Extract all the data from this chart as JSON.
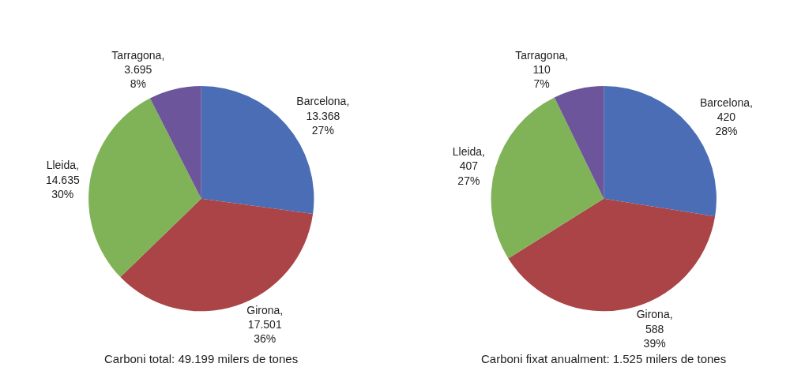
{
  "chart_data": [
    {
      "type": "pie",
      "title": "Carboni total: 49.199 milers de tones",
      "categories": [
        "Barcelona",
        "Girona",
        "Lleida",
        "Tarragona"
      ],
      "values": [
        13368,
        17501,
        14635,
        3695
      ],
      "colors": [
        "#4a6db5",
        "#aa4446",
        "#80b257",
        "#6c559b"
      ],
      "value_labels": [
        ",\n13.368\n27%",
        ",\n17.501\n36%",
        ",\n14.635\n30%",
        ",\n3.695\n8%"
      ]
    },
    {
      "type": "pie",
      "title": "Carboni fixat anualment: 1.525 milers de tones",
      "categories": [
        "Barcelona",
        "Girona",
        "Lleida",
        "Tarragona"
      ],
      "values": [
        420,
        588,
        407,
        110
      ],
      "colors": [
        "#4a6db5",
        "#aa4446",
        "#80b257",
        "#6c559b"
      ],
      "value_labels": [
        ",\n420\n28%",
        ",\n588\n39%",
        ",\n407\n27%",
        ",\n110\n7%"
      ]
    }
  ]
}
